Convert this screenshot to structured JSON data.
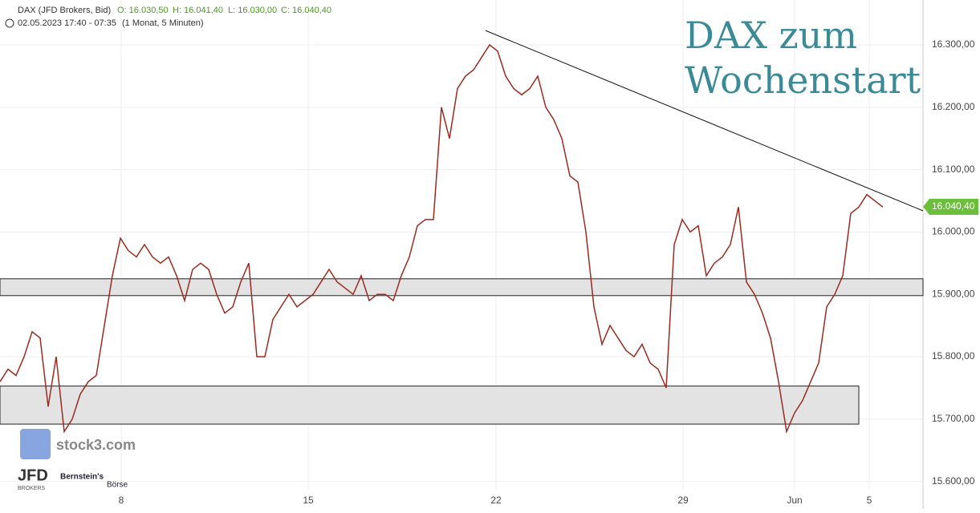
{
  "chart_data": {
    "type": "line",
    "header": {
      "instrument": "DAX (JFD Brokers, Bid)",
      "open": "O: 16.030,50",
      "high": "H: 16.041,40",
      "low": "L: 16.030,00",
      "close": "C: 16.040,40",
      "period": "02.05.2023 17:40 - 07:35",
      "interval": "(1 Monat, 5 Minuten)"
    },
    "title_lines": [
      "DAX zum",
      "Wochenstart"
    ],
    "logos": {
      "stock3": "stock3.com",
      "jfd": "JFD",
      "jfd_sub": "BROKERS",
      "bernstein": "Bernstein's",
      "boerse": "Börse"
    },
    "series": [
      {
        "name": "DAX",
        "color": "#9b2a1f",
        "values": [
          15760,
          15780,
          15770,
          15800,
          15840,
          15830,
          15720,
          15800,
          15680,
          15700,
          15740,
          15760,
          15770,
          15850,
          15930,
          15990,
          15970,
          15960,
          15980,
          15960,
          15950,
          15960,
          15930,
          15890,
          15940,
          15950,
          15940,
          15900,
          15870,
          15880,
          15920,
          15950,
          15800,
          15800,
          15860,
          15880,
          15900,
          15880,
          15890,
          15900,
          15920,
          15940,
          15920,
          15910,
          15900,
          15930,
          15890,
          15900,
          15900,
          15890,
          15930,
          15960,
          16010,
          16020,
          16020,
          16200,
          16150,
          16230,
          16250,
          16260,
          16280,
          16300,
          16290,
          16250,
          16230,
          16220,
          16230,
          16250,
          16200,
          16180,
          16150,
          16090,
          16080,
          16000,
          15880,
          15820,
          15850,
          15830,
          15810,
          15800,
          15820,
          15790,
          15780,
          15750,
          15980,
          16020,
          16000,
          16010,
          15930,
          15950,
          15960,
          15980,
          16040,
          15920,
          15900,
          15870,
          15830,
          15760,
          15680,
          15710,
          15730,
          15760,
          15790,
          15880,
          15900,
          15930,
          16030,
          16040,
          16060,
          16050,
          16040
        ]
      }
    ],
    "categories": [
      null,
      null,
      null,
      null,
      null,
      null,
      null,
      null,
      null,
      null,
      null,
      null,
      null,
      null,
      null,
      null,
      null,
      null,
      null,
      null,
      null,
      null,
      null,
      null,
      null,
      null,
      null,
      null,
      null,
      null,
      null,
      null,
      null,
      null,
      null,
      null,
      null,
      null,
      null,
      null,
      null,
      null,
      null,
      null,
      null,
      null,
      null,
      null,
      null,
      null,
      null,
      null,
      null,
      null,
      null,
      null,
      null,
      null,
      null,
      null,
      null,
      null,
      null,
      null,
      null,
      null,
      null,
      null,
      null,
      null,
      null,
      null,
      null,
      null,
      null,
      null,
      null,
      null,
      null,
      null,
      null,
      null,
      null,
      null,
      null,
      null,
      null,
      null,
      null,
      null,
      null,
      null,
      null,
      null,
      null,
      null,
      null,
      null,
      null,
      null,
      null,
      null,
      null,
      null,
      null,
      null,
      null,
      null,
      null,
      null,
      null
    ],
    "xlim": [
      0,
      115
    ],
    "xticks": [
      {
        "value": 15.1,
        "label": "8"
      },
      {
        "value": 38.4,
        "label": "15"
      },
      {
        "value": 61.8,
        "label": "22"
      },
      {
        "value": 85.1,
        "label": "29"
      },
      {
        "value": 99,
        "label": "Jun"
      },
      {
        "value": 108.3,
        "label": "5"
      }
    ],
    "ylim": [
      15588,
      16372
    ],
    "yticks": [
      {
        "value": 16300,
        "label": "16.300,00"
      },
      {
        "value": 16200,
        "label": "16.200,00"
      },
      {
        "value": 16100,
        "label": "16.100,00"
      },
      {
        "value": 16000,
        "label": "16.000,00"
      },
      {
        "value": 15900,
        "label": "15.900,00"
      },
      {
        "value": 15800,
        "label": "15.800,00"
      },
      {
        "value": 15700,
        "label": "15.700,00"
      },
      {
        "value": 15600,
        "label": "15.600,00"
      }
    ],
    "grid": true,
    "zones": [
      {
        "from": 15898,
        "to": 15925
      },
      {
        "from": 15692,
        "to": 15753
      }
    ],
    "trendline": {
      "x": [
        60.5,
        115
      ],
      "values": [
        16323,
        16034
      ]
    },
    "last_price": {
      "value": 16040.4,
      "label": "16.040,40",
      "color": "#6cbf3a"
    }
  }
}
